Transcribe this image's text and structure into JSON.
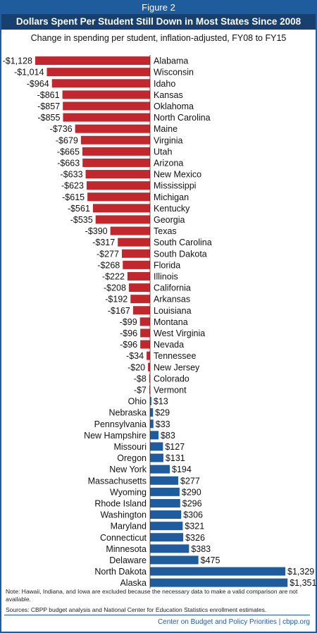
{
  "header": {
    "figure_label": "Figure 2",
    "title": "Dollars Spent Per Student Still Down in Most States Since 2008",
    "subtitle": "Change in spending per student, inflation-adjusted, FY08 to FY15"
  },
  "colors": {
    "negative": "#c1272d",
    "positive": "#1f5c9e",
    "title_band": "#17406f",
    "border": "#1f5c9e"
  },
  "chart_data": {
    "type": "bar",
    "orientation": "horizontal",
    "title": "Dollars Spent Per Student Still Down in Most States Since 2008",
    "subtitle": "Change in spending per student, inflation-adjusted, FY08 to FY15",
    "grid": false,
    "categories": [
      "Alabama",
      "Wisconsin",
      "Idaho",
      "Kansas",
      "Oklahoma",
      "North Carolina",
      "Maine",
      "Virginia",
      "Utah",
      "Arizona",
      "New Mexico",
      "Mississippi",
      "Michigan",
      "Kentucky",
      "Georgia",
      "Texas",
      "South Carolina",
      "South Dakota",
      "Florida",
      "Illinois",
      "California",
      "Arkansas",
      "Louisiana",
      "Montana",
      "West Virginia",
      "Nevada",
      "Tennessee",
      "New Jersey",
      "Colorado",
      "Vermont",
      "Ohio",
      "Nebraska",
      "Pennsylvania",
      "New Hampshire",
      "Missouri",
      "Oregon",
      "New York",
      "Massachusetts",
      "Wyoming",
      "Rhode Island",
      "Washington",
      "Maryland",
      "Connecticut",
      "Minnesota",
      "Delaware",
      "North Dakota",
      "Alaska"
    ],
    "values": [
      -1128,
      -1014,
      -964,
      -861,
      -857,
      -855,
      -736,
      -679,
      -665,
      -663,
      -633,
      -623,
      -615,
      -561,
      -535,
      -390,
      -317,
      -277,
      -268,
      -222,
      -208,
      -192,
      -167,
      -99,
      -96,
      -96,
      -34,
      -20,
      -8,
      -7,
      13,
      29,
      33,
      83,
      127,
      131,
      194,
      277,
      290,
      296,
      306,
      321,
      326,
      383,
      475,
      1329,
      1351
    ],
    "value_labels": [
      "-$1,128",
      "-$1,014",
      "-$964",
      "-$861",
      "-$857",
      "-$855",
      "-$736",
      "-$679",
      "-$665",
      "-$663",
      "-$633",
      "-$623",
      "-$615",
      "-$561",
      "-$535",
      "-$390",
      "-$317",
      "-$277",
      "-$268",
      "-$222",
      "-$208",
      "-$192",
      "-$167",
      "-$99",
      "-$96",
      "-$96",
      "-$34",
      "-$20",
      "-$8",
      "-$7",
      "$13",
      "$29",
      "$33",
      "$83",
      "$127",
      "$131",
      "$194",
      "$277",
      "$290",
      "$296",
      "$306",
      "$321",
      "$326",
      "$383",
      "$475",
      "$1,329",
      "$1,351"
    ]
  },
  "notes": {
    "note": "Note: Hawaii, Indiana, and Iowa are excluded because the necessary data to make a valid comparison are not available.",
    "sources": "Sources: CBPP budget analysis and National Center for Education Statistics enrollment estimates."
  },
  "footer": {
    "credit": "Center on Budget and Policy Priorities | cbpp.org"
  }
}
